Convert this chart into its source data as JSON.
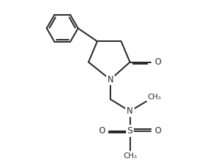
{
  "bg_color": "#ffffff",
  "line_color": "#2a2a2a",
  "line_width": 1.5,
  "font_size": 8.5,
  "figsize": [
    2.84,
    2.27
  ],
  "dpi": 100,
  "xlim": [
    -1.0,
    6.5
  ],
  "ylim": [
    -1.2,
    5.8
  ]
}
